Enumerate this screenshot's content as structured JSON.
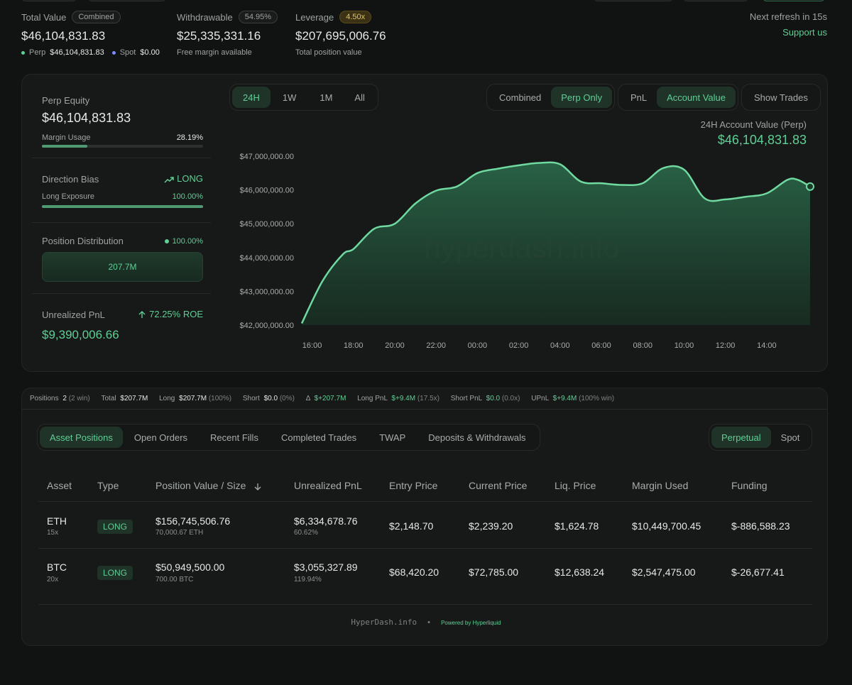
{
  "summary": {
    "total_value": {
      "label": "Total Value",
      "badge": "Combined",
      "value": "$46,104,831.83",
      "perp_label": "Perp",
      "perp_value": "$46,104,831.83",
      "spot_label": "Spot",
      "spot_value": "$0.00"
    },
    "withdrawable": {
      "label": "Withdrawable",
      "badge": "54.95%",
      "value": "$25,335,331.16",
      "caption": "Free margin available"
    },
    "leverage": {
      "label": "Leverage",
      "badge": "4.50x",
      "value": "$207,695,006.76",
      "caption": "Total position value"
    },
    "refresh": "Next refresh in 15s",
    "support": "Support us"
  },
  "stats": {
    "perp_equity": {
      "label": "Perp Equity",
      "value": "$46,104,831.83",
      "margin_label": "Margin Usage",
      "margin_value": "28.19%",
      "margin_pct": 28.19
    },
    "direction": {
      "label": "Direction Bias",
      "bias": "LONG",
      "exposure_label": "Long Exposure",
      "exposure_value": "100.00%",
      "exposure_pct": 100
    },
    "distribution": {
      "label": "Position Distribution",
      "pct": "100.00%",
      "bar_value": "207.7M"
    },
    "unrealized": {
      "label": "Unrealized PnL",
      "roe": "72.25% ROE",
      "value": "$9,390,006.66"
    }
  },
  "chart_controls": {
    "ranges": [
      "24H",
      "1W",
      "1M",
      "All"
    ],
    "modes": [
      "Combined",
      "Perp Only"
    ],
    "metrics": [
      "PnL",
      "Account Value"
    ],
    "show_trades": "Show Trades"
  },
  "chart_data": {
    "type": "area",
    "title": "24H Account Value (Perp)",
    "current_value": "$46,104,831.83",
    "watermark": "hyperdash.info",
    "x_ticks": [
      "16:00",
      "18:00",
      "20:00",
      "22:00",
      "00:00",
      "02:00",
      "04:00",
      "06:00",
      "08:00",
      "10:00",
      "12:00",
      "14:00"
    ],
    "y_ticks": [
      "$47,000,000.00",
      "$46,000,000.00",
      "$45,000,000.00",
      "$44,000,000.00",
      "$43,000,000.00",
      "$42,000,000.00"
    ],
    "ylim": [
      42000000,
      47000000
    ],
    "xlim": [
      -0.5,
      24.1
    ],
    "x": [
      -0.5,
      0.5,
      1.5,
      2.0,
      3.0,
      4.0,
      5.0,
      6.0,
      7.0,
      8.0,
      9.0,
      10.0,
      11.0,
      12.0,
      13.0,
      14.0,
      15.0,
      16.0,
      17.0,
      18.0,
      19.0,
      20.0,
      21.0,
      22.0,
      23.0,
      23.5,
      24.1
    ],
    "values": [
      42050000,
      43300000,
      44100000,
      44250000,
      44850000,
      45000000,
      45600000,
      45980000,
      46100000,
      46500000,
      46630000,
      46730000,
      46800000,
      46760000,
      46250000,
      46200000,
      46150000,
      46200000,
      46650000,
      46600000,
      45750000,
      45720000,
      45800000,
      45900000,
      46300000,
      46300000,
      46100000
    ],
    "line_color": "#6fd9a0",
    "grid": false
  },
  "positions_bar": {
    "positions_label": "Positions",
    "positions_count": "2",
    "positions_win": "(2 win)",
    "total_label": "Total",
    "total_value": "$207.7M",
    "long_label": "Long",
    "long_value": "$207.7M",
    "long_pct": "(100%)",
    "short_label": "Short",
    "short_value": "$0.0",
    "short_pct": "(0%)",
    "delta_label": "Δ",
    "delta_value": "$+207.7M",
    "long_pnl_label": "Long PnL",
    "long_pnl_value": "$+9.4M",
    "long_pnl_x": "(17.5x)",
    "short_pnl_label": "Short PnL",
    "short_pnl_value": "$0.0",
    "short_pnl_x": "(0.0x)",
    "upnl_label": "UPnL",
    "upnl_value": "$+9.4M",
    "upnl_win": "(100% win)"
  },
  "tabs": [
    "Asset Positions",
    "Open Orders",
    "Recent Fills",
    "Completed Trades",
    "TWAP",
    "Deposits & Withdrawals"
  ],
  "market_tabs": [
    "Perpetual",
    "Spot"
  ],
  "table": {
    "headers": [
      "Asset",
      "Type",
      "Position Value / Size",
      "Unrealized PnL",
      "Entry Price",
      "Current Price",
      "Liq. Price",
      "Margin Used",
      "Funding"
    ],
    "sort_icon": "arrow-down-icon",
    "rows": [
      {
        "asset": "ETH",
        "lev": "15x",
        "type": "LONG",
        "value": "$156,745,506.76",
        "size": "70,000.67 ETH",
        "upnl": "$6,334,678.76",
        "upnl_pct": "60.62%",
        "entry": "$2,148.70",
        "current": "$2,239.20",
        "liq": "$1,624.78",
        "margin": "$10,449,700.45",
        "funding": "$-886,588.23"
      },
      {
        "asset": "BTC",
        "lev": "20x",
        "type": "LONG",
        "value": "$50,949,500.00",
        "size": "700.00 BTC",
        "upnl": "$3,055,327.89",
        "upnl_pct": "119.94%",
        "entry": "$68,420.20",
        "current": "$72,785.00",
        "liq": "$12,638.24",
        "margin": "$2,547,475.00",
        "funding": "$-26,677.41"
      }
    ]
  },
  "footer": {
    "brand": "HyperDash.info",
    "powered": "Powered by Hyperliquid"
  }
}
